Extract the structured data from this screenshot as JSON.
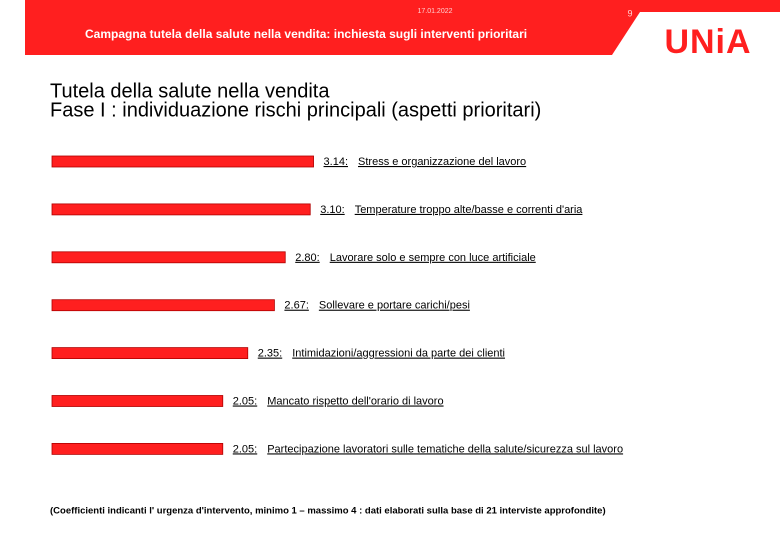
{
  "header": {
    "date": "17.01.2022",
    "page": "9",
    "title": "Campagna tutela della salute nella vendita: inchiesta sugli interventi prioritari",
    "logo": "UNiA"
  },
  "chart_data": {
    "type": "bar",
    "orientation": "horizontal",
    "title": "Tutela della salute nella vendita",
    "subtitle": "Fase I : individuazione rischi principali (aspetti prioritari)",
    "categories": [
      "Stress e organizzazione del lavoro",
      "Temperature troppo alte/basse e correnti d'aria",
      "Lavorare solo e sempre con luce artificiale",
      "Sollevare e portare carichi/pesi",
      "Intimidazioni/aggressioni da parte dei clienti",
      "Mancato rispetto dell'orario di lavoro",
      "Partecipazione lavoratori sulle tematiche della salute/sicurezza sul lavoro"
    ],
    "values": [
      3.14,
      3.1,
      2.8,
      2.67,
      2.35,
      2.05,
      2.05
    ],
    "value_labels": [
      "3.14:",
      "3.10:",
      "2.80:",
      "2.67:",
      "2.35:",
      "2.05:",
      "2.05:"
    ],
    "color": "#ff1f1f",
    "note": "(Coefficienti indicanti l' urgenza d'intervento, minimo 1 – massimo 4 : dati elaborati sulla base di 21 interviste approfondite)"
  }
}
